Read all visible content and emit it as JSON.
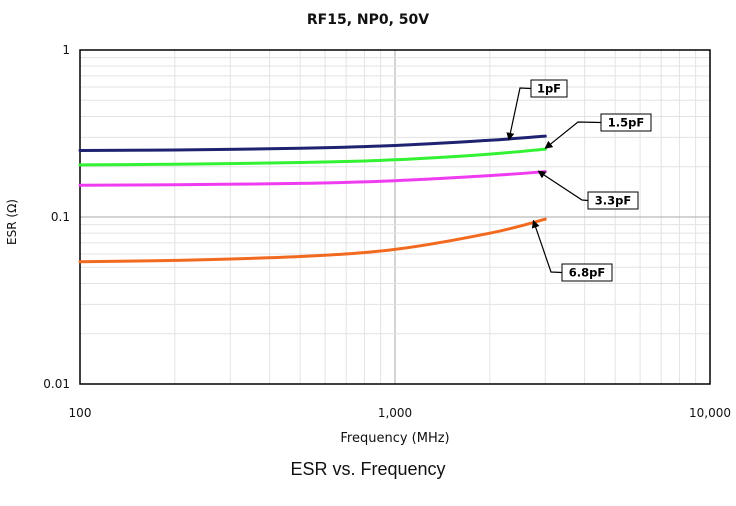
{
  "caption": "ESR vs. Frequency",
  "colors": {
    "1pF": "#1f2270",
    "1.5pF": "#33f233",
    "3.3pF": "#f03cf0",
    "6.8pF": "#f26a1f"
  },
  "chart_data": {
    "type": "line",
    "title": "RF15, NP0, 50V",
    "xlabel": "Frequency (MHz)",
    "ylabel": "ESR (Ω)",
    "x_scale": "log",
    "y_scale": "log",
    "xlim": [
      100,
      10000
    ],
    "ylim": [
      0.01,
      1
    ],
    "x_ticks": [
      "100",
      "1,000",
      "10,000"
    ],
    "y_ticks": [
      "0.01",
      "0.1",
      "1"
    ],
    "grid": true,
    "series": [
      {
        "name": "1pF",
        "x": [
          100,
          200,
          500,
          1000,
          2000,
          3000
        ],
        "y": [
          0.25,
          0.252,
          0.258,
          0.268,
          0.288,
          0.305
        ]
      },
      {
        "name": "1.5pF",
        "x": [
          100,
          200,
          500,
          1000,
          2000,
          3000
        ],
        "y": [
          0.205,
          0.207,
          0.212,
          0.22,
          0.238,
          0.255
        ]
      },
      {
        "name": "3.3pF",
        "x": [
          100,
          200,
          500,
          1000,
          2000,
          3000
        ],
        "y": [
          0.155,
          0.156,
          0.159,
          0.165,
          0.177,
          0.187
        ]
      },
      {
        "name": "6.8pF",
        "x": [
          100,
          200,
          500,
          1000,
          2000,
          3000
        ],
        "y": [
          0.054,
          0.055,
          0.058,
          0.064,
          0.08,
          0.097
        ]
      }
    ]
  }
}
